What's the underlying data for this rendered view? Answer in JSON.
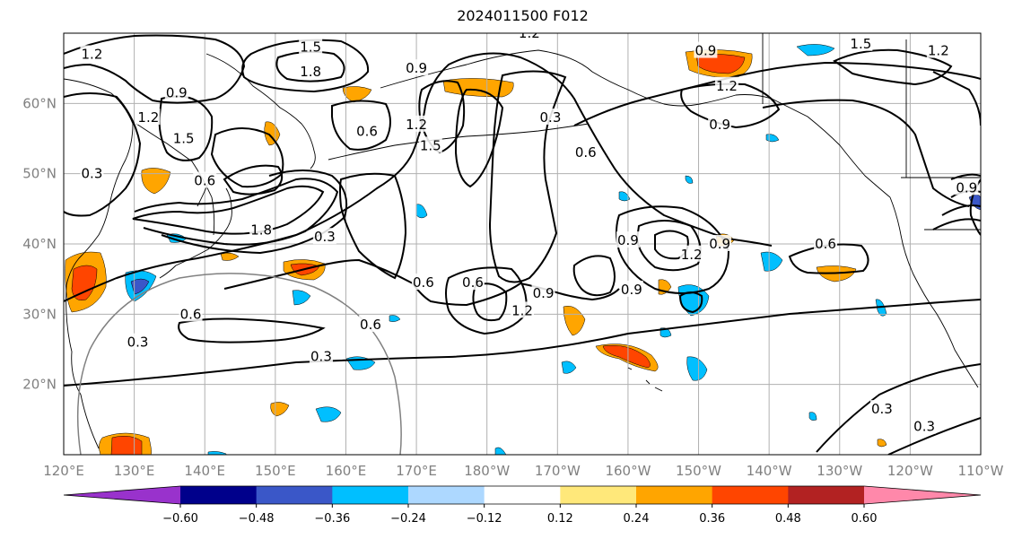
{
  "title": "2024011500 F012",
  "map": {
    "lon_range": [
      120,
      250
    ],
    "lat_range": [
      10,
      70
    ],
    "lat_ticks": [
      {
        "lat": 60,
        "label": "60°N"
      },
      {
        "lat": 50,
        "label": "50°N"
      },
      {
        "lat": 40,
        "label": "40°N"
      },
      {
        "lat": 30,
        "label": "30°N"
      },
      {
        "lat": 20,
        "label": "20°N"
      }
    ],
    "lon_ticks": [
      {
        "lon": 120,
        "label": "120°E"
      },
      {
        "lon": 130,
        "label": "130°E"
      },
      {
        "lon": 140,
        "label": "140°E"
      },
      {
        "lon": 150,
        "label": "150°E"
      },
      {
        "lon": 160,
        "label": "160°E"
      },
      {
        "lon": 170,
        "label": "170°E"
      },
      {
        "lon": 180,
        "label": "180°W"
      },
      {
        "lon": 190,
        "label": "170°W"
      },
      {
        "lon": 200,
        "label": "160°W"
      },
      {
        "lon": 210,
        "label": "150°W"
      },
      {
        "lon": 220,
        "label": "140°W"
      },
      {
        "lon": 230,
        "label": "130°W"
      },
      {
        "lon": 240,
        "label": "120°W"
      },
      {
        "lon": 250,
        "label": "110°W"
      }
    ],
    "contour_labels": [
      {
        "lon": 124,
        "lat": 67,
        "text": "1.2"
      },
      {
        "lon": 155,
        "lat": 68,
        "text": "1.5"
      },
      {
        "lon": 155,
        "lat": 64.5,
        "text": "1.8"
      },
      {
        "lon": 136,
        "lat": 61.5,
        "text": "0.9"
      },
      {
        "lon": 132,
        "lat": 58,
        "text": "1.2"
      },
      {
        "lon": 124,
        "lat": 50,
        "text": "0.3"
      },
      {
        "lon": 137,
        "lat": 55,
        "text": "1.5"
      },
      {
        "lon": 140,
        "lat": 49,
        "text": "0.6"
      },
      {
        "lon": 148,
        "lat": 42,
        "text": "1.8"
      },
      {
        "lon": 157,
        "lat": 41,
        "text": "0.3"
      },
      {
        "lon": 163,
        "lat": 56,
        "text": "0.6"
      },
      {
        "lon": 170,
        "lat": 57,
        "text": "1.2"
      },
      {
        "lon": 172,
        "lat": 54,
        "text": "1.5"
      },
      {
        "lon": 170,
        "lat": 65,
        "text": "0.9"
      },
      {
        "lon": 186,
        "lat": 70,
        "text": "1.2"
      },
      {
        "lon": 189,
        "lat": 58,
        "text": "0.3"
      },
      {
        "lon": 194,
        "lat": 53,
        "text": "0.6"
      },
      {
        "lon": 211,
        "lat": 67.5,
        "text": "0.9"
      },
      {
        "lon": 214,
        "lat": 62.5,
        "text": "1.2"
      },
      {
        "lon": 213,
        "lat": 57,
        "text": "0.9"
      },
      {
        "lon": 200,
        "lat": 40.5,
        "text": "0.9"
      },
      {
        "lon": 209,
        "lat": 38.5,
        "text": "1.2"
      },
      {
        "lon": 213,
        "lat": 40,
        "text": "0.9"
      },
      {
        "lon": 188,
        "lat": 33,
        "text": "0.9"
      },
      {
        "lon": 178,
        "lat": 34.5,
        "text": "0.6"
      },
      {
        "lon": 171,
        "lat": 34.5,
        "text": "0.6"
      },
      {
        "lon": 185,
        "lat": 30.5,
        "text": "1.2"
      },
      {
        "lon": 200.5,
        "lat": 33.5,
        "text": "0.9"
      },
      {
        "lon": 228,
        "lat": 40,
        "text": "0.6"
      },
      {
        "lon": 130.5,
        "lat": 26,
        "text": "0.3"
      },
      {
        "lon": 138,
        "lat": 30,
        "text": "0.6"
      },
      {
        "lon": 163.5,
        "lat": 28.5,
        "text": "0.6"
      },
      {
        "lon": 156.5,
        "lat": 24,
        "text": "0.3"
      },
      {
        "lon": 244,
        "lat": 67.5,
        "text": "1.2"
      },
      {
        "lon": 233,
        "lat": 68.5,
        "text": "1.5"
      },
      {
        "lon": 236,
        "lat": 16.5,
        "text": "0.3"
      },
      {
        "lon": 242,
        "lat": 14,
        "text": "0.3"
      },
      {
        "lon": 248,
        "lat": 48,
        "text": "0.9"
      }
    ]
  },
  "colorbar": {
    "colors": [
      "#9932cc",
      "#00008b",
      "#3a57c8",
      "#00bfff",
      "#add8ff",
      "#ffffff",
      "#ffe87a",
      "#ffa500",
      "#ff4500",
      "#b22222",
      "#ff88aa"
    ],
    "tick_labels": [
      "−0.60",
      "−0.48",
      "−0.36",
      "−0.24",
      "−0.12",
      "0.12",
      "0.24",
      "0.36",
      "0.48",
      "0.60"
    ]
  }
}
